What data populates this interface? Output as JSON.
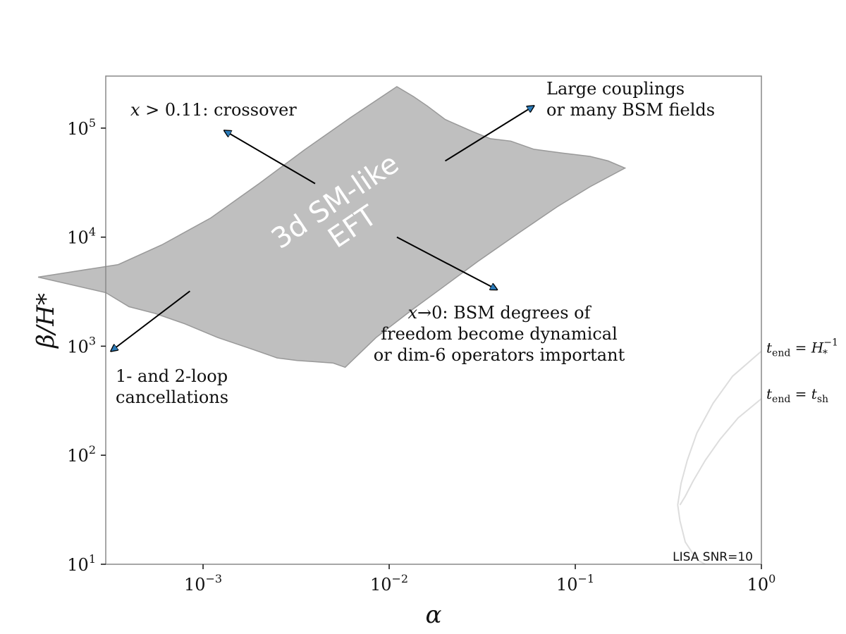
{
  "chart_data": {
    "type": "area",
    "xlabel": "α",
    "ylabel": "β/H*",
    "xscale": "log",
    "yscale": "log",
    "xlim": [
      0.0003,
      1.0
    ],
    "ylim": [
      10,
      300000
    ],
    "grid": false,
    "xticks": [
      {
        "value": 0.001,
        "base": "10",
        "exp": "−3"
      },
      {
        "value": 0.01,
        "base": "10",
        "exp": "−2"
      },
      {
        "value": 0.1,
        "base": "10",
        "exp": "−1"
      },
      {
        "value": 1.0,
        "base": "10",
        "exp": "0"
      }
    ],
    "yticks": [
      {
        "value": 10,
        "base": "10",
        "exp": "1"
      },
      {
        "value": 100,
        "base": "10",
        "exp": "2"
      },
      {
        "value": 1000,
        "base": "10",
        "exp": "3"
      },
      {
        "value": 10000,
        "base": "10",
        "exp": "4"
      },
      {
        "value": 100000,
        "base": "10",
        "exp": "5"
      }
    ],
    "region": {
      "label_line1": "3d SM-like",
      "label_line2": "EFT",
      "fill": "#bfbfbf",
      "edge": "#999999",
      "polygon": [
        [
          0.00013,
          4300
        ],
        [
          0.0003,
          3100
        ],
        [
          0.0004,
          2300
        ],
        [
          0.00055,
          2000
        ],
        [
          0.0008,
          1600
        ],
        [
          0.0012,
          1200
        ],
        [
          0.0018,
          950
        ],
        [
          0.0025,
          780
        ],
        [
          0.0032,
          740
        ],
        [
          0.004,
          720
        ],
        [
          0.005,
          700
        ],
        [
          0.0058,
          640
        ],
        [
          0.0085,
          1200
        ],
        [
          0.013,
          2100
        ],
        [
          0.02,
          3600
        ],
        [
          0.03,
          6000
        ],
        [
          0.05,
          11000
        ],
        [
          0.08,
          19000
        ],
        [
          0.12,
          29000
        ],
        [
          0.185,
          43000
        ],
        [
          0.15,
          50000
        ],
        [
          0.12,
          55000
        ],
        [
          0.085,
          59000
        ],
        [
          0.06,
          64000
        ],
        [
          0.045,
          76000
        ],
        [
          0.035,
          80000
        ],
        [
          0.028,
          93000
        ],
        [
          0.02,
          120000
        ],
        [
          0.016,
          160000
        ],
        [
          0.0135,
          195000
        ],
        [
          0.011,
          240000
        ],
        [
          0.0062,
          125000
        ],
        [
          0.0035,
          63000
        ],
        [
          0.002,
          31000
        ],
        [
          0.0011,
          15000
        ],
        [
          0.0006,
          8500
        ],
        [
          0.00035,
          5600
        ]
      ]
    },
    "annotations": [
      {
        "lines": [
          "x > 0.11: crossover"
        ],
        "from": [
          0.004,
          31000
        ],
        "to": [
          0.0013,
          95000
        ]
      },
      {
        "lines": [
          "Large couplings",
          "or many BSM fields"
        ],
        "from": [
          0.02,
          50000
        ],
        "to": [
          0.06,
          160000
        ]
      },
      {
        "lines": [
          "x→0: BSM degrees of",
          "freedom become dynamical",
          "or dim-6 operators important"
        ],
        "from": [
          0.011,
          10000
        ],
        "to": [
          0.038,
          3300
        ]
      },
      {
        "lines": [
          "1- and 2-loop",
          "cancellations"
        ],
        "from": [
          0.00085,
          3200
        ],
        "to": [
          0.00032,
          900
        ]
      }
    ],
    "arrow_color": "#2b7bb9",
    "curves": [
      {
        "name_main": "t",
        "name_sub": "end",
        "rhs_main": "H",
        "rhs_sup": "−1",
        "rhs_sub": "*",
        "color": "#dddddd",
        "points": [
          [
            1.0,
            900
          ],
          [
            0.7,
            530
          ],
          [
            0.55,
            300
          ],
          [
            0.45,
            160
          ],
          [
            0.4,
            90
          ],
          [
            0.37,
            55
          ],
          [
            0.355,
            35
          ],
          [
            0.365,
            25
          ],
          [
            0.39,
            16
          ],
          [
            0.45,
            11
          ],
          [
            0.5,
            10
          ]
        ]
      },
      {
        "name_main": "t",
        "name_sub": "end",
        "rhs_main": "t",
        "rhs_sup": "",
        "rhs_sub": "sh",
        "color": "#dddddd",
        "points": [
          [
            1.0,
            330
          ],
          [
            0.75,
            220
          ],
          [
            0.6,
            140
          ],
          [
            0.5,
            90
          ],
          [
            0.43,
            58
          ],
          [
            0.39,
            42
          ],
          [
            0.365,
            35
          ]
        ]
      }
    ],
    "corner_label": "LISA SNR=10"
  }
}
